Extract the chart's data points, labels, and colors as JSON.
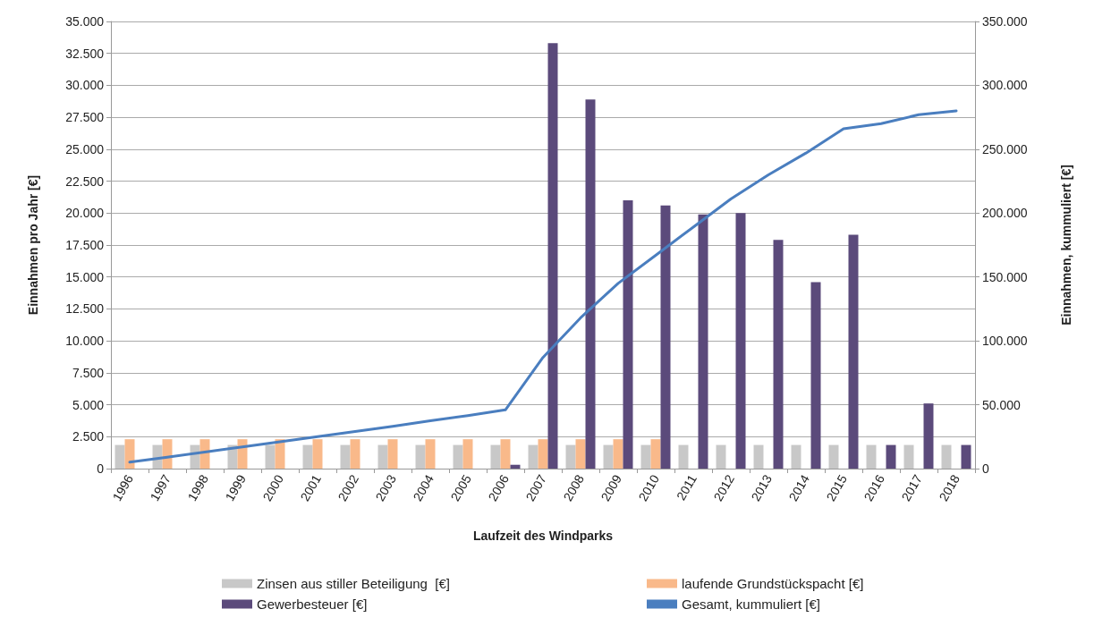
{
  "chart_data": {
    "type": "bar",
    "xlabel": "Laufzeit des Windparks",
    "ylabel": "Einnahmen pro Jahr [€]",
    "y2label": "Einnahmen, kummuliert [€]",
    "categories": [
      "1996",
      "1997",
      "1998",
      "1999",
      "2000",
      "2001",
      "2002",
      "2003",
      "2004",
      "2005",
      "2006",
      "2007",
      "2008",
      "2009",
      "2010",
      "2011",
      "2012",
      "2013",
      "2014",
      "2015",
      "2016",
      "2017",
      "2018"
    ],
    "series": [
      {
        "name": "Zinsen aus stiller Beteiligung  [€]",
        "color": "#c8c8c8",
        "values": [
          1850,
          1850,
          1850,
          1850,
          1850,
          1850,
          1850,
          1850,
          1850,
          1850,
          1850,
          1850,
          1850,
          1850,
          1850,
          1850,
          1850,
          1850,
          1850,
          1850,
          1850,
          1850,
          1850
        ]
      },
      {
        "name": "laufende Grundstückspacht [€]",
        "color": "#f9b98a",
        "values": [
          2300,
          2300,
          2300,
          2300,
          2300,
          2300,
          2300,
          2300,
          2300,
          2300,
          2300,
          2300,
          2300,
          2300,
          2300,
          null,
          null,
          null,
          null,
          null,
          null,
          null,
          null
        ]
      },
      {
        "name": "Gewerbesteuer [€]",
        "color": "#5b4a7b",
        "values": [
          null,
          null,
          null,
          null,
          null,
          null,
          null,
          null,
          null,
          null,
          300,
          33300,
          28900,
          21000,
          20600,
          19900,
          20000,
          17900,
          14600,
          18300,
          1850,
          5100,
          1850
        ]
      },
      {
        "name": "Gesamt, kummuliert [€]",
        "type": "line",
        "axis": "y2",
        "color": "#4a7ebf",
        "values": [
          5000,
          9000,
          13000,
          17000,
          21000,
          25000,
          29000,
          33000,
          37500,
          41500,
          46000,
          87000,
          118000,
          145000,
          167000,
          189000,
          211000,
          230000,
          247000,
          266000,
          270000,
          277000,
          280000
        ]
      }
    ],
    "ylim": [
      0,
      35000
    ],
    "yticks": [
      {
        "value": 0,
        "label": "0"
      },
      {
        "value": 2500,
        "label": "2.500"
      },
      {
        "value": 5000,
        "label": "5.000"
      },
      {
        "value": 7500,
        "label": "7.500"
      },
      {
        "value": 10000,
        "label": "10.000"
      },
      {
        "value": 12500,
        "label": "12.500"
      },
      {
        "value": 15000,
        "label": "15.000"
      },
      {
        "value": 17500,
        "label": "17.500"
      },
      {
        "value": 20000,
        "label": "20.000"
      },
      {
        "value": 22500,
        "label": "22.500"
      },
      {
        "value": 25000,
        "label": "25.000"
      },
      {
        "value": 27500,
        "label": "27.500"
      },
      {
        "value": 30000,
        "label": "30.000"
      },
      {
        "value": 32500,
        "label": "32.500"
      },
      {
        "value": 35000,
        "label": "35.000"
      }
    ],
    "y2lim": [
      0,
      350000
    ],
    "y2ticks": [
      {
        "value": 0,
        "label": "0"
      },
      {
        "value": 50000,
        "label": "50.000"
      },
      {
        "value": 100000,
        "label": "100.000"
      },
      {
        "value": 150000,
        "label": "150.000"
      },
      {
        "value": 200000,
        "label": "200.000"
      },
      {
        "value": 250000,
        "label": "250.000"
      },
      {
        "value": 300000,
        "label": "300.000"
      },
      {
        "value": 350000,
        "label": "350.000"
      }
    ],
    "grid": "y",
    "legend": "bottom",
    "marker": "none",
    "line_style": "solid"
  }
}
